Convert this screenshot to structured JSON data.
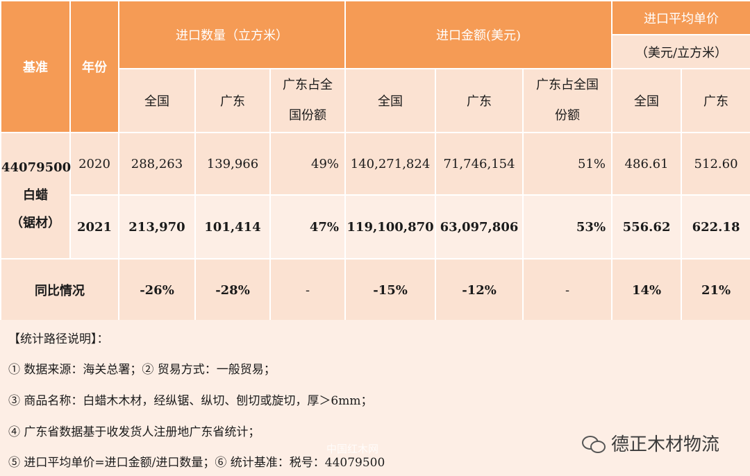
{
  "header": {
    "base": "基准",
    "year": "年份",
    "qty_group": "进口数量（立方米）",
    "amt_group": "进口金额(美元)",
    "price_group": "进口平均单价",
    "price_unit": "（美元/立方米）",
    "nation": "全国",
    "guangdong": "广东",
    "share_qty_1": "广东占全",
    "share_qty_2": "国份额",
    "share_amt_1": "广东占全国",
    "share_amt_2": "份额"
  },
  "base_cell": {
    "code": "44079500",
    "name": "白蜡",
    "note": "（锯材）"
  },
  "rows": [
    {
      "year": "2020",
      "qty_nation": "288,263",
      "qty_gd": "139,966",
      "qty_share": "49%",
      "amt_nation": "140,271,824",
      "amt_gd": "71,746,154",
      "amt_share": "51%",
      "price_nation": "486.61",
      "price_gd": "512.60"
    },
    {
      "year": "2021",
      "qty_nation": "213,970",
      "qty_gd": "101,414",
      "qty_share": "47%",
      "amt_nation": "119,100,870",
      "amt_gd": "63,097,806",
      "amt_share": "53%",
      "price_nation": "556.62",
      "price_gd": "622.18"
    }
  ],
  "yoy": {
    "label": "同比情况",
    "qty_nation": "-26%",
    "qty_gd": "-28%",
    "qty_share": "-",
    "amt_nation": "-15%",
    "amt_gd": "-12%",
    "amt_share": "-",
    "price_nation": "14%",
    "price_gd": "21%"
  },
  "notes": {
    "title": "【统计路径说明】：",
    "line1": "① 数据来源：海关总署；② 贸易方式：一般贸易；",
    "line2": "③ 商品名称：白蜡木木材，经纵锯、纵切、刨切或旋切，厚＞6mm；",
    "line3": "④ 广东省数据基于收发货人注册地广东省统计；",
    "line4": "⑤ 进口平均单价=进口金额/进口数量；⑥ 统计基准：税号：44079500"
  },
  "watermark": {
    "brand": "德正木材物流",
    "faint": "中国红木网",
    "icon": "wechat-icon"
  }
}
